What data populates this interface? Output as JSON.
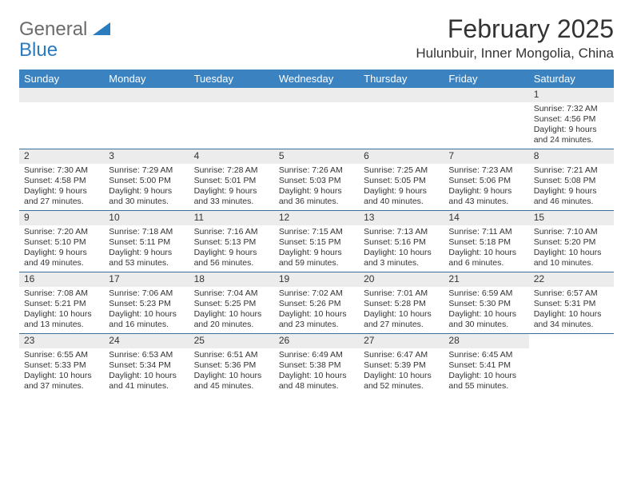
{
  "logo": {
    "text1": "General",
    "text2": "Blue"
  },
  "title": "February 2025",
  "location": "Hulunbuir, Inner Mongolia, China",
  "colors": {
    "header_bg": "#3b83c0",
    "header_text": "#ffffff",
    "daynum_bg": "#ececec",
    "row_border": "#3b6f9a",
    "logo_gray": "#6b6b6b",
    "logo_blue": "#2b7bbf"
  },
  "day_headers": [
    "Sunday",
    "Monday",
    "Tuesday",
    "Wednesday",
    "Thursday",
    "Friday",
    "Saturday"
  ],
  "weeks": [
    [
      null,
      null,
      null,
      null,
      null,
      null,
      {
        "n": "1",
        "sunrise": "7:32 AM",
        "sunset": "4:56 PM",
        "dl": "9 hours and 24 minutes."
      }
    ],
    [
      {
        "n": "2",
        "sunrise": "7:30 AM",
        "sunset": "4:58 PM",
        "dl": "9 hours and 27 minutes."
      },
      {
        "n": "3",
        "sunrise": "7:29 AM",
        "sunset": "5:00 PM",
        "dl": "9 hours and 30 minutes."
      },
      {
        "n": "4",
        "sunrise": "7:28 AM",
        "sunset": "5:01 PM",
        "dl": "9 hours and 33 minutes."
      },
      {
        "n": "5",
        "sunrise": "7:26 AM",
        "sunset": "5:03 PM",
        "dl": "9 hours and 36 minutes."
      },
      {
        "n": "6",
        "sunrise": "7:25 AM",
        "sunset": "5:05 PM",
        "dl": "9 hours and 40 minutes."
      },
      {
        "n": "7",
        "sunrise": "7:23 AM",
        "sunset": "5:06 PM",
        "dl": "9 hours and 43 minutes."
      },
      {
        "n": "8",
        "sunrise": "7:21 AM",
        "sunset": "5:08 PM",
        "dl": "9 hours and 46 minutes."
      }
    ],
    [
      {
        "n": "9",
        "sunrise": "7:20 AM",
        "sunset": "5:10 PM",
        "dl": "9 hours and 49 minutes."
      },
      {
        "n": "10",
        "sunrise": "7:18 AM",
        "sunset": "5:11 PM",
        "dl": "9 hours and 53 minutes."
      },
      {
        "n": "11",
        "sunrise": "7:16 AM",
        "sunset": "5:13 PM",
        "dl": "9 hours and 56 minutes."
      },
      {
        "n": "12",
        "sunrise": "7:15 AM",
        "sunset": "5:15 PM",
        "dl": "9 hours and 59 minutes."
      },
      {
        "n": "13",
        "sunrise": "7:13 AM",
        "sunset": "5:16 PM",
        "dl": "10 hours and 3 minutes."
      },
      {
        "n": "14",
        "sunrise": "7:11 AM",
        "sunset": "5:18 PM",
        "dl": "10 hours and 6 minutes."
      },
      {
        "n": "15",
        "sunrise": "7:10 AM",
        "sunset": "5:20 PM",
        "dl": "10 hours and 10 minutes."
      }
    ],
    [
      {
        "n": "16",
        "sunrise": "7:08 AM",
        "sunset": "5:21 PM",
        "dl": "10 hours and 13 minutes."
      },
      {
        "n": "17",
        "sunrise": "7:06 AM",
        "sunset": "5:23 PM",
        "dl": "10 hours and 16 minutes."
      },
      {
        "n": "18",
        "sunrise": "7:04 AM",
        "sunset": "5:25 PM",
        "dl": "10 hours and 20 minutes."
      },
      {
        "n": "19",
        "sunrise": "7:02 AM",
        "sunset": "5:26 PM",
        "dl": "10 hours and 23 minutes."
      },
      {
        "n": "20",
        "sunrise": "7:01 AM",
        "sunset": "5:28 PM",
        "dl": "10 hours and 27 minutes."
      },
      {
        "n": "21",
        "sunrise": "6:59 AM",
        "sunset": "5:30 PM",
        "dl": "10 hours and 30 minutes."
      },
      {
        "n": "22",
        "sunrise": "6:57 AM",
        "sunset": "5:31 PM",
        "dl": "10 hours and 34 minutes."
      }
    ],
    [
      {
        "n": "23",
        "sunrise": "6:55 AM",
        "sunset": "5:33 PM",
        "dl": "10 hours and 37 minutes."
      },
      {
        "n": "24",
        "sunrise": "6:53 AM",
        "sunset": "5:34 PM",
        "dl": "10 hours and 41 minutes."
      },
      {
        "n": "25",
        "sunrise": "6:51 AM",
        "sunset": "5:36 PM",
        "dl": "10 hours and 45 minutes."
      },
      {
        "n": "26",
        "sunrise": "6:49 AM",
        "sunset": "5:38 PM",
        "dl": "10 hours and 48 minutes."
      },
      {
        "n": "27",
        "sunrise": "6:47 AM",
        "sunset": "5:39 PM",
        "dl": "10 hours and 52 minutes."
      },
      {
        "n": "28",
        "sunrise": "6:45 AM",
        "sunset": "5:41 PM",
        "dl": "10 hours and 55 minutes."
      },
      null
    ]
  ],
  "labels": {
    "sunrise": "Sunrise:",
    "sunset": "Sunset:",
    "daylight": "Daylight:"
  }
}
